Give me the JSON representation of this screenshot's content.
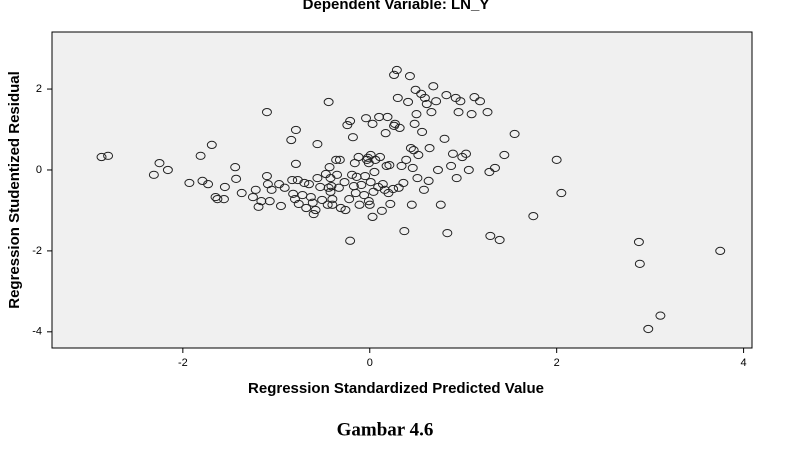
{
  "chart_data": {
    "type": "scatter",
    "title": "Dependent Variable: LN_Y",
    "x_label": "Regression Standardized Predicted Value",
    "y_label": "Regression Studentized Residual",
    "caption": "Gambar 4.6",
    "color": "#222222",
    "background": "#f0f0f0",
    "grid": false,
    "xlim": [
      -3.4,
      4.09
    ],
    "ylim": [
      -4.4,
      3.41
    ],
    "xticks": [
      -2,
      0,
      2,
      4
    ],
    "yticks": [
      -4,
      -2,
      0,
      2
    ],
    "x": [
      -2.87,
      -2.8,
      -2.31,
      -2.25,
      -2.16,
      -1.93,
      -1.81,
      -1.79,
      -1.73,
      -1.69,
      -1.65,
      -1.63,
      -1.55,
      -1.56,
      -1.44,
      -1.43,
      -1.37,
      -1.25,
      -1.22,
      -1.19,
      -1.16,
      -1.1,
      -1.1,
      -1.09,
      -1.07,
      -1.05,
      -0.97,
      -0.95,
      -0.91,
      -0.84,
      -0.83,
      -0.82,
      -0.8,
      -0.79,
      -0.79,
      -0.77,
      -0.76,
      -0.72,
      -0.7,
      -0.68,
      -0.65,
      -0.63,
      -0.61,
      -0.6,
      -0.58,
      -0.56,
      -0.56,
      -0.53,
      -0.51,
      -0.47,
      -0.45,
      -0.44,
      -0.44,
      -0.43,
      -0.42,
      -0.42,
      -0.41,
      -0.4,
      -0.4,
      -0.36,
      -0.35,
      -0.33,
      -0.32,
      -0.31,
      -0.27,
      -0.26,
      -0.24,
      -0.22,
      -0.21,
      -0.21,
      -0.19,
      -0.18,
      -0.17,
      -0.16,
      -0.15,
      -0.14,
      -0.12,
      -0.11,
      -0.09,
      -0.06,
      -0.05,
      -0.04,
      -0.03,
      -0.02,
      -0.01,
      -0.01,
      0.0,
      0.01,
      0.01,
      0.03,
      0.03,
      0.04,
      0.05,
      0.06,
      0.09,
      0.1,
      0.11,
      0.13,
      0.14,
      0.16,
      0.17,
      0.18,
      0.19,
      0.2,
      0.21,
      0.22,
      0.25,
      0.26,
      0.26,
      0.27,
      0.29,
      0.3,
      0.31,
      0.32,
      0.34,
      0.36,
      0.37,
      0.39,
      0.41,
      0.43,
      0.44,
      0.45,
      0.46,
      0.47,
      0.48,
      0.49,
      0.5,
      0.51,
      0.52,
      0.55,
      0.56,
      0.58,
      0.59,
      0.61,
      0.63,
      0.64,
      0.66,
      0.68,
      0.71,
      0.73,
      0.76,
      0.8,
      0.82,
      0.83,
      0.87,
      0.89,
      0.92,
      0.93,
      0.95,
      0.97,
      0.99,
      1.03,
      1.06,
      1.09,
      1.12,
      1.18,
      1.26,
      1.28,
      1.29,
      1.34,
      1.39,
      1.44,
      1.55,
      1.75,
      2.0,
      2.05,
      2.88,
      2.89,
      2.98,
      3.11,
      3.75
    ],
    "values": [
      0.32,
      0.35,
      -0.12,
      0.17,
      0.0,
      -0.32,
      0.35,
      -0.27,
      -0.35,
      0.62,
      -0.67,
      -0.72,
      -0.42,
      -0.72,
      0.07,
      -0.22,
      -0.57,
      -0.67,
      -0.49,
      -0.91,
      -0.77,
      1.43,
      -0.15,
      -0.35,
      -0.77,
      -0.49,
      -0.35,
      -0.89,
      -0.44,
      0.74,
      -0.25,
      -0.59,
      -0.72,
      0.99,
      0.15,
      -0.25,
      -0.84,
      -0.62,
      -0.32,
      -0.94,
      -0.35,
      -0.67,
      -0.81,
      -1.09,
      -0.99,
      0.64,
      -0.2,
      -0.42,
      -0.74,
      -0.1,
      -0.86,
      1.68,
      -0.44,
      0.07,
      -0.2,
      -0.54,
      -0.4,
      -0.72,
      -0.86,
      0.25,
      -0.12,
      -0.44,
      0.25,
      -0.94,
      -0.3,
      -0.99,
      1.11,
      -0.72,
      1.21,
      -1.75,
      -0.12,
      0.81,
      -0.4,
      0.17,
      -0.57,
      -0.17,
      0.32,
      -0.86,
      -0.37,
      -0.62,
      -0.15,
      1.28,
      0.25,
      0.3,
      -0.77,
      0.17,
      -0.86,
      -0.3,
      0.37,
      1.14,
      -1.16,
      -0.54,
      -0.05,
      0.25,
      -0.42,
      1.31,
      0.32,
      -1.01,
      -0.35,
      -0.49,
      0.91,
      0.1,
      1.31,
      -0.57,
      0.12,
      -0.84,
      -0.47,
      1.09,
      2.35,
      1.14,
      2.47,
      1.78,
      -0.44,
      1.04,
      0.1,
      -0.32,
      -1.51,
      0.25,
      1.68,
      2.32,
      0.54,
      -0.86,
      0.05,
      0.49,
      1.14,
      1.98,
      1.38,
      -0.2,
      0.37,
      1.88,
      0.94,
      -0.49,
      1.78,
      1.63,
      -0.27,
      0.54,
      1.43,
      2.07,
      1.7,
      0.0,
      -0.86,
      0.77,
      1.85,
      -1.56,
      0.1,
      0.4,
      1.78,
      -0.2,
      1.43,
      1.7,
      0.32,
      0.4,
      0.0,
      1.38,
      1.8,
      1.7,
      1.43,
      -0.05,
      -1.63,
      0.05,
      -1.73,
      0.37,
      0.89,
      -1.14,
      0.25,
      -0.57,
      -1.78,
      -2.32,
      -3.93,
      -3.6,
      -2.0
    ]
  }
}
